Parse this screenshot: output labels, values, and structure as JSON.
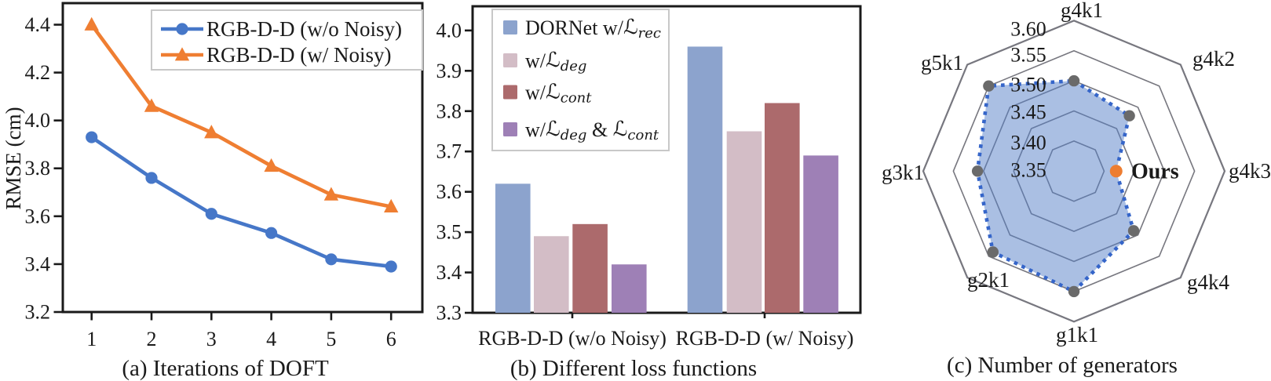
{
  "figure": {
    "background": "#ffffff",
    "text_color": "#1a1a1a",
    "axis_color": "#1a1a1a",
    "legend_border_color": "#c8c8c8"
  },
  "chart_data": [
    {
      "id": "iterations-of-doft",
      "type": "line",
      "caption": "(a) Iterations of DOFT",
      "ylabel": "RMSE (cm)",
      "x": [
        1,
        2,
        3,
        4,
        5,
        6
      ],
      "xticks": [
        "1",
        "2",
        "3",
        "4",
        "5",
        "6"
      ],
      "yticks": [
        "3.2",
        "3.4",
        "3.6",
        "3.8",
        "4.0",
        "4.2",
        "4.4"
      ],
      "ylim": [
        3.2,
        4.49
      ],
      "grid": false,
      "legend_position": "top-right",
      "series": [
        {
          "name": "RGB-D-D (w/o Noisy)",
          "color": "#4677C8",
          "marker": "circle",
          "values": [
            3.93,
            3.76,
            3.61,
            3.53,
            3.42,
            3.39
          ]
        },
        {
          "name": "RGB-D-D (w/ Noisy)",
          "color": "#EF7E32",
          "marker": "triangle",
          "values": [
            4.4,
            4.06,
            3.95,
            3.81,
            3.69,
            3.64
          ]
        }
      ]
    },
    {
      "id": "different-loss-functions",
      "type": "bar",
      "caption": "(b) Different loss functions",
      "categories": [
        "RGB-D-D (w/o Noisy)",
        "RGB-D-D (w/ Noisy)"
      ],
      "yticks": [
        "3.3",
        "3.4",
        "3.5",
        "3.6",
        "3.7",
        "3.8",
        "3.9",
        "4.0"
      ],
      "ylim": [
        3.3,
        4.06
      ],
      "grid": false,
      "legend_position": "top-left",
      "series": [
        {
          "name": "DORNet w/L_rec",
          "color": "#8CA3CD",
          "values": [
            3.62,
            3.96
          ],
          "label_segments": [
            {
              "t": "DORNet w/"
            },
            {
              "m": "ℒ"
            },
            {
              "s": "rec"
            }
          ]
        },
        {
          "name": "w/L_deg",
          "color": "#D3BDC6",
          "values": [
            3.49,
            3.75
          ],
          "label_segments": [
            {
              "t": "w/"
            },
            {
              "m": "ℒ"
            },
            {
              "s": "deg"
            }
          ]
        },
        {
          "name": "w/L_cont",
          "color": "#AC6A6C",
          "values": [
            3.52,
            3.82
          ],
          "label_segments": [
            {
              "t": "w/"
            },
            {
              "m": "ℒ"
            },
            {
              "s": "cont"
            }
          ]
        },
        {
          "name": "w/L_deg & L_cont",
          "color": "#9E80B6",
          "values": [
            3.42,
            3.69
          ],
          "label_segments": [
            {
              "t": "w/"
            },
            {
              "m": "ℒ"
            },
            {
              "s": "deg"
            },
            {
              "t": " & "
            },
            {
              "m": "ℒ"
            },
            {
              "s": "cont"
            }
          ]
        }
      ]
    },
    {
      "id": "number-of-generators",
      "type": "radar",
      "caption": "(c) Number of generators",
      "axes": [
        "g4k1",
        "g4k2",
        "g4k3",
        "g4k4",
        "g1k1",
        "g2k1",
        "g3k1",
        "g5k1"
      ],
      "values": [
        3.5,
        3.48,
        3.42,
        3.49,
        3.55,
        3.54,
        3.51,
        3.55
      ],
      "rticks": [
        "3.60",
        "3.55",
        "3.50",
        "3.45",
        "3.40",
        "3.35"
      ],
      "rlim": [
        3.35,
        3.6
      ],
      "rings": [
        3.4,
        3.45,
        3.5,
        3.55,
        3.6
      ],
      "ring_color": "#77777F",
      "fill_color": "#5580C8",
      "outline_color": "#3565C9",
      "dot_color": "#6A6A6A",
      "ours": {
        "label": "Ours",
        "axis": "g4k3",
        "value": 3.42,
        "color": "#ED7D31"
      }
    }
  ]
}
